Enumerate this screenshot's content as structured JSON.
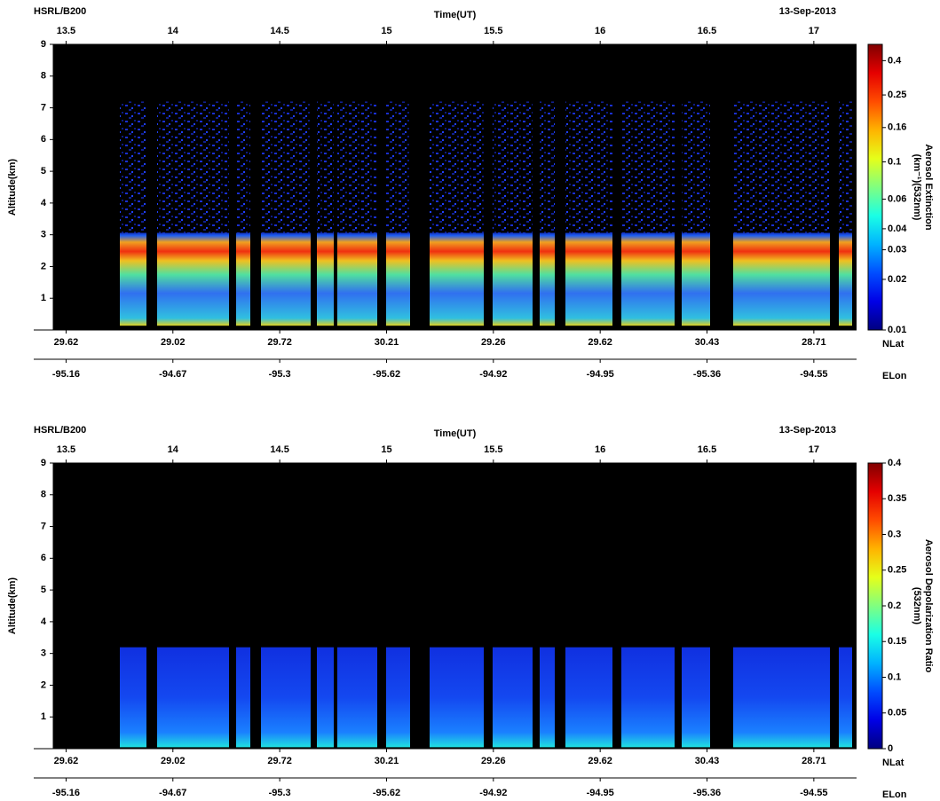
{
  "chart_data": [
    {
      "type": "heatmap",
      "title": "HSRL/B200",
      "date": "13-Sep-2013",
      "x_label": "Time(UT)",
      "y_label": "Altitude(km)",
      "xlim": [
        13.44,
        17.2
      ],
      "xticks": [
        13.5,
        14,
        14.5,
        15,
        15.5,
        16,
        16.5,
        17
      ],
      "ylim": [
        0,
        9
      ],
      "yticks": [
        1,
        2,
        3,
        4,
        5,
        6,
        7,
        8,
        9
      ],
      "nlat": {
        "label": "NLat",
        "values": [
          29.62,
          29.02,
          29.72,
          30.21,
          29.26,
          29.62,
          30.43,
          28.71
        ]
      },
      "elon": {
        "label": "ELon",
        "values": [
          -95.16,
          -94.67,
          -95.3,
          -95.62,
          -94.92,
          -94.95,
          -95.36,
          -94.55
        ]
      },
      "colorbar": {
        "label": [
          "Aerosol Extinction",
          "(km⁻¹)(532nm)"
        ],
        "scale": "log",
        "lim": [
          0.01,
          0.5
        ],
        "ticks": [
          0.01,
          0.02,
          0.03,
          0.04,
          0.06,
          0.1,
          0.16,
          0.25,
          0.4
        ]
      }
    },
    {
      "type": "heatmap",
      "title": "HSRL/B200",
      "date": "13-Sep-2013",
      "x_label": "Time(UT)",
      "y_label": "Altitude(km)",
      "xlim": [
        13.44,
        17.2
      ],
      "xticks": [
        13.5,
        14,
        14.5,
        15,
        15.5,
        16,
        16.5,
        17
      ],
      "ylim": [
        0,
        9
      ],
      "yticks": [
        1,
        2,
        3,
        4,
        5,
        6,
        7,
        8,
        9
      ],
      "nlat": {
        "label": "NLat",
        "values": [
          29.62,
          29.02,
          29.72,
          30.21,
          29.26,
          29.62,
          30.43,
          28.71
        ]
      },
      "elon": {
        "label": "ELon",
        "values": [
          -95.16,
          -94.67,
          -95.3,
          -95.62,
          -94.92,
          -94.95,
          -95.36,
          -94.55
        ]
      },
      "colorbar": {
        "label": [
          "Aerosol Depolarization Ratio",
          "(532nm)"
        ],
        "scale": "linear",
        "lim": [
          0,
          0.4
        ],
        "ticks": [
          0,
          0.05,
          0.1,
          0.15,
          0.2,
          0.25,
          0.3,
          0.35,
          0.4
        ]
      }
    }
  ]
}
